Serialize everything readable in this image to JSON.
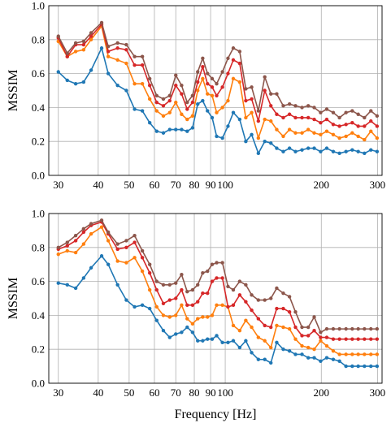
{
  "chart_data": [
    {
      "type": "line",
      "xscale": "log",
      "xlim": [
        28,
        310
      ],
      "ylim": [
        0.0,
        1.0
      ],
      "grid": true,
      "xlabel": "",
      "ylabel": "MSSIM",
      "xticks": [
        30,
        40,
        50,
        60,
        70,
        80,
        90,
        100,
        200,
        300
      ],
      "xtick_labels": [
        "30",
        "40",
        "50",
        "60",
        "70",
        "80",
        "90",
        "100",
        "200",
        "300"
      ],
      "yticks": [
        0.0,
        0.2,
        0.4,
        0.6,
        0.8,
        1.0
      ],
      "ytick_labels": [
        "0.0",
        "0.2",
        "0.4",
        "0.6",
        "0.8",
        "1.0"
      ],
      "x": [
        30,
        32,
        34,
        36,
        38,
        41,
        43,
        46,
        49,
        52,
        55,
        58,
        61,
        64,
        67,
        70,
        73,
        76,
        79,
        82,
        85,
        88,
        91,
        94,
        98,
        102,
        106,
        111,
        116,
        121,
        127,
        133,
        139,
        145,
        152,
        159,
        166,
        174,
        182,
        190,
        199,
        208,
        218,
        228,
        239,
        250,
        261,
        273,
        286,
        299
      ],
      "series": [
        {
          "color": "#1f77b4",
          "values": [
            0.61,
            0.56,
            0.54,
            0.55,
            0.62,
            0.75,
            0.6,
            0.53,
            0.5,
            0.39,
            0.38,
            0.31,
            0.26,
            0.25,
            0.27,
            0.27,
            0.27,
            0.26,
            0.28,
            0.42,
            0.44,
            0.38,
            0.34,
            0.23,
            0.22,
            0.29,
            0.37,
            0.33,
            0.2,
            0.24,
            0.13,
            0.2,
            0.19,
            0.16,
            0.14,
            0.16,
            0.14,
            0.15,
            0.16,
            0.16,
            0.14,
            0.16,
            0.14,
            0.13,
            0.14,
            0.15,
            0.14,
            0.13,
            0.15,
            0.14
          ]
        },
        {
          "color": "#ff7f0e",
          "values": [
            0.79,
            0.7,
            0.73,
            0.74,
            0.8,
            0.88,
            0.7,
            0.68,
            0.66,
            0.54,
            0.54,
            0.45,
            0.38,
            0.35,
            0.37,
            0.43,
            0.36,
            0.33,
            0.35,
            0.5,
            0.57,
            0.48,
            0.47,
            0.37,
            0.4,
            0.44,
            0.57,
            0.55,
            0.34,
            0.37,
            0.22,
            0.33,
            0.32,
            0.27,
            0.23,
            0.27,
            0.25,
            0.25,
            0.27,
            0.25,
            0.24,
            0.26,
            0.24,
            0.22,
            0.23,
            0.25,
            0.23,
            0.21,
            0.26,
            0.22
          ]
        },
        {
          "color": "#d62728",
          "values": [
            0.81,
            0.7,
            0.77,
            0.77,
            0.82,
            0.89,
            0.73,
            0.75,
            0.74,
            0.65,
            0.65,
            0.53,
            0.43,
            0.41,
            0.44,
            0.53,
            0.48,
            0.39,
            0.43,
            0.55,
            0.64,
            0.54,
            0.52,
            0.47,
            0.52,
            0.6,
            0.68,
            0.66,
            0.44,
            0.45,
            0.32,
            0.5,
            0.41,
            0.36,
            0.34,
            0.36,
            0.34,
            0.34,
            0.34,
            0.33,
            0.31,
            0.33,
            0.3,
            0.29,
            0.3,
            0.31,
            0.29,
            0.29,
            0.32,
            0.29
          ]
        },
        {
          "color": "#8c564b",
          "values": [
            0.82,
            0.72,
            0.78,
            0.79,
            0.84,
            0.9,
            0.76,
            0.78,
            0.77,
            0.7,
            0.7,
            0.57,
            0.47,
            0.45,
            0.47,
            0.59,
            0.53,
            0.43,
            0.47,
            0.61,
            0.69,
            0.6,
            0.57,
            0.54,
            0.61,
            0.69,
            0.75,
            0.73,
            0.51,
            0.52,
            0.38,
            0.58,
            0.48,
            0.48,
            0.41,
            0.42,
            0.41,
            0.4,
            0.41,
            0.4,
            0.37,
            0.39,
            0.37,
            0.34,
            0.37,
            0.38,
            0.36,
            0.34,
            0.38,
            0.35
          ]
        }
      ]
    },
    {
      "type": "line",
      "xscale": "log",
      "xlim": [
        28,
        310
      ],
      "ylim": [
        0.0,
        1.0
      ],
      "grid": true,
      "xlabel": "Frequency [Hz]",
      "ylabel": "MSSIM",
      "xticks": [
        30,
        40,
        50,
        60,
        70,
        80,
        90,
        100,
        200,
        300
      ],
      "xtick_labels": [
        "30",
        "40",
        "50",
        "60",
        "70",
        "80",
        "90",
        "100",
        "200",
        "300"
      ],
      "yticks": [
        0.0,
        0.2,
        0.4,
        0.6,
        0.8,
        1.0
      ],
      "ytick_labels": [
        "0.0",
        "0.2",
        "0.4",
        "0.6",
        "0.8",
        "1.0"
      ],
      "x": [
        30,
        32,
        34,
        36,
        38,
        41,
        43,
        46,
        49,
        52,
        55,
        58,
        61,
        64,
        67,
        70,
        73,
        76,
        79,
        82,
        85,
        88,
        91,
        94,
        98,
        102,
        106,
        111,
        116,
        121,
        127,
        133,
        139,
        145,
        152,
        159,
        166,
        174,
        182,
        190,
        199,
        208,
        218,
        228,
        239,
        250,
        261,
        273,
        286,
        299
      ],
      "series": [
        {
          "color": "#1f77b4",
          "values": [
            0.59,
            0.58,
            0.56,
            0.62,
            0.68,
            0.75,
            0.7,
            0.58,
            0.49,
            0.45,
            0.46,
            0.44,
            0.37,
            0.31,
            0.27,
            0.29,
            0.3,
            0.33,
            0.3,
            0.25,
            0.25,
            0.26,
            0.26,
            0.28,
            0.24,
            0.24,
            0.25,
            0.21,
            0.25,
            0.18,
            0.14,
            0.14,
            0.12,
            0.24,
            0.2,
            0.19,
            0.17,
            0.17,
            0.15,
            0.15,
            0.13,
            0.15,
            0.14,
            0.13,
            0.1,
            0.1,
            0.1,
            0.1,
            0.1,
            0.1
          ]
        },
        {
          "color": "#ff7f0e",
          "values": [
            0.76,
            0.78,
            0.77,
            0.82,
            0.88,
            0.92,
            0.84,
            0.72,
            0.71,
            0.74,
            0.66,
            0.55,
            0.45,
            0.4,
            0.39,
            0.4,
            0.46,
            0.38,
            0.35,
            0.38,
            0.39,
            0.39,
            0.4,
            0.46,
            0.46,
            0.45,
            0.34,
            0.31,
            0.37,
            0.33,
            0.27,
            0.25,
            0.21,
            0.34,
            0.33,
            0.32,
            0.26,
            0.22,
            0.21,
            0.2,
            0.25,
            0.22,
            0.19,
            0.17,
            0.17,
            0.17,
            0.17,
            0.17,
            0.17,
            0.17
          ]
        },
        {
          "color": "#d62728",
          "values": [
            0.79,
            0.81,
            0.84,
            0.89,
            0.93,
            0.95,
            0.88,
            0.79,
            0.8,
            0.83,
            0.74,
            0.65,
            0.55,
            0.47,
            0.49,
            0.5,
            0.55,
            0.46,
            0.46,
            0.48,
            0.53,
            0.53,
            0.6,
            0.62,
            0.62,
            0.45,
            0.46,
            0.52,
            0.48,
            0.43,
            0.38,
            0.34,
            0.33,
            0.44,
            0.44,
            0.42,
            0.33,
            0.28,
            0.28,
            0.31,
            0.27,
            0.27,
            0.26,
            0.26,
            0.26,
            0.26,
            0.26,
            0.26,
            0.26,
            0.26
          ]
        },
        {
          "color": "#8c564b",
          "values": [
            0.8,
            0.83,
            0.87,
            0.91,
            0.94,
            0.96,
            0.89,
            0.82,
            0.84,
            0.87,
            0.78,
            0.7,
            0.6,
            0.58,
            0.58,
            0.59,
            0.64,
            0.54,
            0.55,
            0.58,
            0.65,
            0.66,
            0.7,
            0.71,
            0.71,
            0.57,
            0.55,
            0.6,
            0.58,
            0.52,
            0.49,
            0.49,
            0.5,
            0.56,
            0.53,
            0.51,
            0.42,
            0.33,
            0.33,
            0.39,
            0.3,
            0.32,
            0.32,
            0.32,
            0.32,
            0.32,
            0.32,
            0.32,
            0.32,
            0.32
          ]
        }
      ]
    }
  ]
}
